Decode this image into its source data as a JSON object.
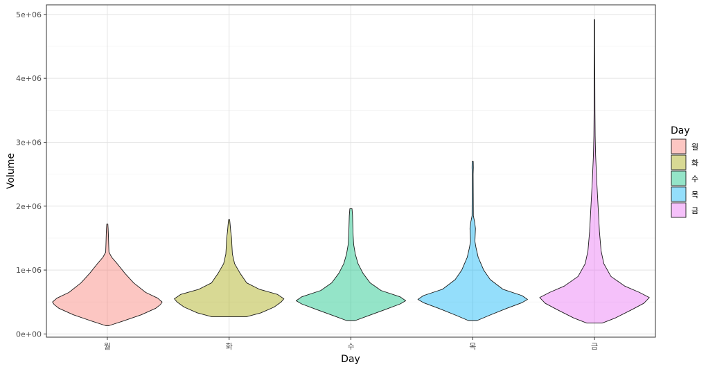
{
  "chart_data": {
    "type": "violin",
    "xlabel": "Day",
    "ylabel": "Volume",
    "categories": [
      "월",
      "화",
      "수",
      "목",
      "금"
    ],
    "y_ticks": [
      "0e+00",
      "1e+06",
      "2e+06",
      "3e+06",
      "4e+06",
      "5e+06"
    ],
    "ylim": [
      -50000,
      5150000
    ],
    "grid": true,
    "legend": {
      "title": "Day",
      "position": "right",
      "entries": [
        "월",
        "화",
        "수",
        "목",
        "금"
      ]
    },
    "colors": [
      "#F8766D",
      "#A3A500",
      "#00BF7D",
      "#00B0F6",
      "#E76BF3"
    ],
    "violins": [
      {
        "name": "월",
        "profile": [
          [
            130000,
            0.03
          ],
          [
            200000,
            0.28
          ],
          [
            300000,
            0.62
          ],
          [
            400000,
            0.88
          ],
          [
            460000,
            0.97
          ],
          [
            500000,
            1.0
          ],
          [
            560000,
            0.92
          ],
          [
            650000,
            0.7
          ],
          [
            800000,
            0.48
          ],
          [
            950000,
            0.32
          ],
          [
            1100000,
            0.18
          ],
          [
            1200000,
            0.08
          ],
          [
            1280000,
            0.03
          ],
          [
            1400000,
            0.025
          ],
          [
            1550000,
            0.02
          ],
          [
            1650000,
            0.015
          ],
          [
            1720000,
            0.01
          ]
        ]
      },
      {
        "name": "화",
        "profile": [
          [
            270000,
            0.32
          ],
          [
            330000,
            0.58
          ],
          [
            420000,
            0.82
          ],
          [
            500000,
            0.95
          ],
          [
            550000,
            1.0
          ],
          [
            620000,
            0.88
          ],
          [
            700000,
            0.55
          ],
          [
            800000,
            0.32
          ],
          [
            950000,
            0.2
          ],
          [
            1100000,
            0.1
          ],
          [
            1250000,
            0.06
          ],
          [
            1400000,
            0.05
          ],
          [
            1500000,
            0.045
          ],
          [
            1600000,
            0.03
          ],
          [
            1700000,
            0.02
          ],
          [
            1790000,
            0.01
          ]
        ]
      },
      {
        "name": "수",
        "profile": [
          [
            210000,
            0.08
          ],
          [
            280000,
            0.3
          ],
          [
            380000,
            0.62
          ],
          [
            470000,
            0.9
          ],
          [
            520000,
            1.0
          ],
          [
            580000,
            0.9
          ],
          [
            680000,
            0.55
          ],
          [
            800000,
            0.35
          ],
          [
            950000,
            0.22
          ],
          [
            1100000,
            0.13
          ],
          [
            1250000,
            0.08
          ],
          [
            1400000,
            0.05
          ],
          [
            1550000,
            0.04
          ],
          [
            1700000,
            0.035
          ],
          [
            1850000,
            0.03
          ],
          [
            1960000,
            0.02
          ]
        ]
      },
      {
        "name": "목",
        "profile": [
          [
            210000,
            0.08
          ],
          [
            290000,
            0.3
          ],
          [
            400000,
            0.62
          ],
          [
            490000,
            0.9
          ],
          [
            540000,
            1.0
          ],
          [
            600000,
            0.9
          ],
          [
            700000,
            0.55
          ],
          [
            850000,
            0.32
          ],
          [
            1000000,
            0.2
          ],
          [
            1200000,
            0.1
          ],
          [
            1350000,
            0.06
          ],
          [
            1450000,
            0.04
          ],
          [
            1550000,
            0.045
          ],
          [
            1650000,
            0.05
          ],
          [
            1750000,
            0.035
          ],
          [
            1850000,
            0.012
          ],
          [
            2200000,
            0.01
          ],
          [
            2500000,
            0.008
          ],
          [
            2600000,
            0.012
          ],
          [
            2700000,
            0.01
          ]
        ]
      },
      {
        "name": "금",
        "profile": [
          [
            170000,
            0.14
          ],
          [
            250000,
            0.38
          ],
          [
            380000,
            0.68
          ],
          [
            480000,
            0.9
          ],
          [
            570000,
            1.0
          ],
          [
            650000,
            0.82
          ],
          [
            750000,
            0.55
          ],
          [
            900000,
            0.3
          ],
          [
            1100000,
            0.17
          ],
          [
            1300000,
            0.12
          ],
          [
            1600000,
            0.09
          ],
          [
            2000000,
            0.065
          ],
          [
            2400000,
            0.04
          ],
          [
            2800000,
            0.02
          ],
          [
            3100000,
            0.012
          ],
          [
            3500000,
            0.008
          ],
          [
            4000000,
            0.006
          ],
          [
            4500000,
            0.004
          ],
          [
            4920000,
            0.004
          ]
        ]
      }
    ]
  }
}
